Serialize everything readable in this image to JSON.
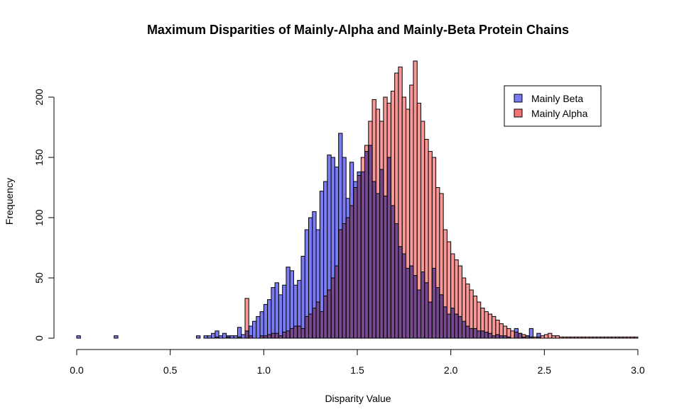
{
  "chart_data": {
    "type": "bar",
    "title": "Maximum Disparities of Mainly-Alpha and Mainly-Beta Protein Chains",
    "xlabel": "Disparity Value",
    "ylabel": "Frequency",
    "xlim": [
      0,
      3
    ],
    "ylim": [
      0,
      225
    ],
    "x_ticks": [
      "0.0",
      "0.5",
      "1.0",
      "1.5",
      "2.0",
      "2.5",
      "3.0"
    ],
    "y_ticks": [
      "0",
      "50",
      "100",
      "150",
      "200"
    ],
    "bin_start": 0,
    "bin_width": 0.02,
    "grid": false,
    "legend_position": "top-right",
    "series": [
      {
        "name": "Mainly Beta",
        "color": "#7b7bf3",
        "values": [
          2,
          0,
          0,
          0,
          0,
          0,
          0,
          0,
          0,
          0,
          2,
          0,
          0,
          0,
          0,
          0,
          0,
          0,
          0,
          0,
          0,
          0,
          0,
          0,
          0,
          0,
          0,
          0,
          0,
          0,
          0,
          0,
          2,
          0,
          2,
          2,
          4,
          6,
          2,
          4,
          2,
          2,
          2,
          9,
          3,
          6,
          10,
          14,
          18,
          22,
          28,
          32,
          42,
          46,
          36,
          44,
          59,
          56,
          44,
          48,
          68,
          90,
          100,
          105,
          90,
          122,
          130,
          152,
          150,
          142,
          170,
          150,
          116,
          146,
          130,
          138,
          138,
          155,
          160,
          130,
          120,
          140,
          118,
          150,
          110,
          95,
          76,
          70,
          58,
          60,
          52,
          40,
          55,
          46,
          30,
          58,
          42,
          36,
          26,
          20,
          25,
          20,
          18,
          14,
          10,
          8,
          8,
          6,
          6,
          5,
          4,
          2,
          3,
          2,
          2,
          1,
          0,
          8,
          4,
          1,
          2,
          8,
          0,
          4,
          0,
          0,
          0,
          0,
          0,
          0,
          0,
          0,
          0,
          0,
          0,
          0,
          0,
          0,
          0,
          0,
          0,
          0,
          0,
          0,
          0,
          0,
          0,
          0,
          0,
          0
        ]
      },
      {
        "name": "Mainly Alpha",
        "color": "#f87474",
        "values": [
          0,
          0,
          0,
          0,
          0,
          0,
          0,
          0,
          0,
          0,
          0,
          0,
          0,
          0,
          0,
          0,
          0,
          0,
          0,
          0,
          0,
          0,
          0,
          0,
          0,
          0,
          0,
          0,
          0,
          0,
          0,
          0,
          0,
          0,
          0,
          0,
          0,
          1,
          0,
          0,
          1,
          0,
          0,
          1,
          0,
          33,
          2,
          0,
          0,
          2,
          2,
          3,
          4,
          4,
          2,
          5,
          6,
          8,
          10,
          10,
          8,
          18,
          20,
          25,
          30,
          22,
          35,
          40,
          50,
          60,
          90,
          95,
          100,
          110,
          125,
          135,
          150,
          160,
          180,
          198,
          190,
          180,
          200,
          195,
          205,
          220,
          225,
          200,
          190,
          210,
          230,
          195,
          180,
          165,
          155,
          150,
          125,
          120,
          90,
          80,
          70,
          65,
          60,
          50,
          45,
          40,
          35,
          30,
          25,
          22,
          20,
          18,
          15,
          12,
          10,
          8,
          6,
          5,
          4,
          3,
          2,
          1,
          1,
          1,
          2,
          3,
          4,
          2,
          2,
          1,
          1,
          1,
          1,
          1,
          1,
          1,
          1,
          1,
          1,
          1,
          1,
          1,
          1,
          1,
          1,
          1,
          1,
          1,
          1,
          1
        ]
      }
    ]
  }
}
